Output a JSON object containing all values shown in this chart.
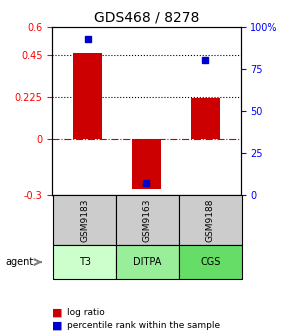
{
  "title": "GDS468 / 8278",
  "samples": [
    "GSM9183",
    "GSM9163",
    "GSM9188"
  ],
  "agents": [
    "T3",
    "DITPA",
    "CGS"
  ],
  "log_ratios": [
    0.46,
    -0.27,
    0.22
  ],
  "percentile_ranks": [
    0.93,
    0.07,
    0.8
  ],
  "bar_color": "#cc0000",
  "dot_color": "#0000cc",
  "ylim_left": [
    -0.3,
    0.6
  ],
  "ylim_right": [
    0,
    100
  ],
  "yticks_left": [
    -0.3,
    0,
    0.225,
    0.45,
    0.6
  ],
  "ytick_labels_left": [
    "-0.3",
    "0",
    "0.225",
    "0.45",
    "0.6"
  ],
  "yticks_right": [
    0,
    25,
    50,
    75,
    100
  ],
  "ytick_labels_right": [
    "0",
    "25",
    "50",
    "75",
    "100%"
  ],
  "hlines": [
    0.225,
    0.45
  ],
  "agent_colors": [
    "#ccffcc",
    "#99ee99",
    "#66dd66"
  ],
  "sample_color": "#cccccc",
  "bar_width": 0.5,
  "legend_log_ratio_color": "#cc0000",
  "legend_percentile_color": "#0000cc"
}
